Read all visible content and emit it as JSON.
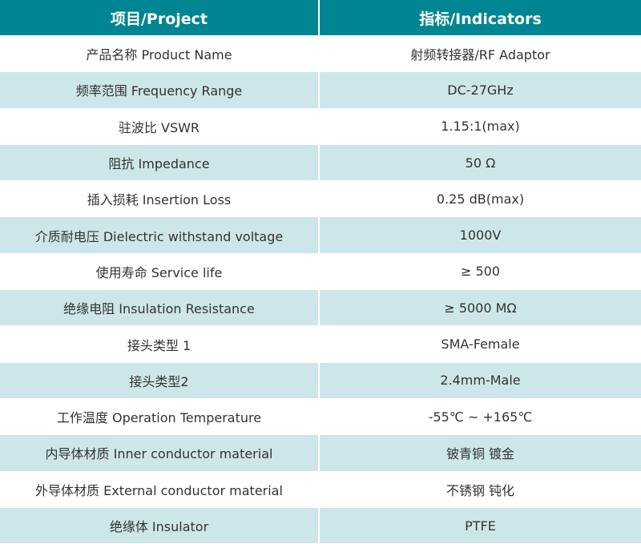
{
  "header": {
    "project": "项目/Project",
    "indicators": "指标/Indicators"
  },
  "colors": {
    "header_bg": "#008593",
    "alt_row_bg": "#cde6ea"
  },
  "rows": [
    {
      "project": "产品名称 Product Name",
      "indicator": "射频转接器/RF Adaptor"
    },
    {
      "project": "频率范围 Frequency Range",
      "indicator": "DC-27GHz"
    },
    {
      "project": "驻波比 VSWR",
      "indicator": "1.15:1(max)"
    },
    {
      "project": "阻抗 Impedance",
      "indicator": "50 Ω"
    },
    {
      "project": "插入损耗 Insertion Loss",
      "indicator": "0.25 dB(max)"
    },
    {
      "project": "介质耐电压 Dielectric withstand voltage",
      "indicator": "1000V"
    },
    {
      "project": "使用寿命 Service life",
      "indicator": "≥ 500"
    },
    {
      "project": "绝缘电阻 Insulation Resistance",
      "indicator": "≥ 5000 MΩ"
    },
    {
      "project": "接头类型 1",
      "indicator": "SMA-Female"
    },
    {
      "project": "接头类型2",
      "indicator": "2.4mm-Male"
    },
    {
      "project": "工作温度 Operation Temperature",
      "indicator": "-55℃ ~ +165℃"
    },
    {
      "project": "内导体材质 Inner conductor material",
      "indicator": "铍青铜 镀金"
    },
    {
      "project": "外导体材质 External conductor material",
      "indicator": "不锈钢 钝化"
    },
    {
      "project": "绝缘体 Insulator",
      "indicator": "PTFE"
    }
  ]
}
